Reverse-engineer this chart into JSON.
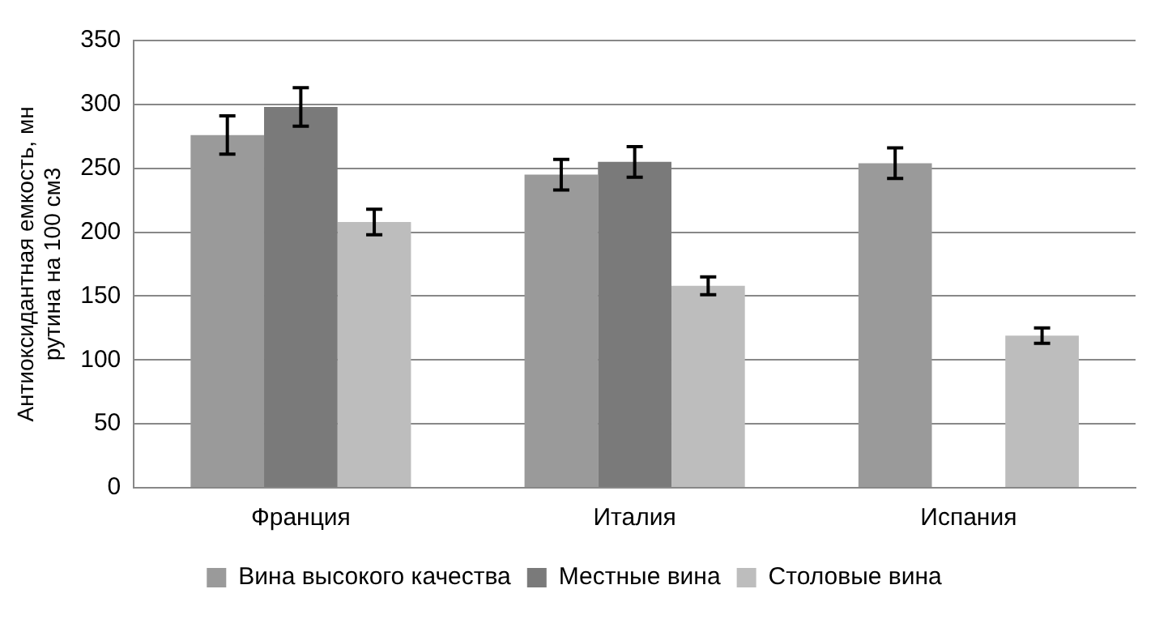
{
  "chart_data": {
    "type": "bar",
    "ylabel": "Антиоксидантная емкость, мн рутина на 100 см3",
    "categories": [
      "Франция",
      "Италия",
      "Испания"
    ],
    "series": [
      {
        "name": "Вина высокого качества",
        "color": "#9a9a9a",
        "values": [
          276,
          245,
          254
        ],
        "errors": [
          15,
          12,
          12
        ]
      },
      {
        "name": "Местные вина",
        "color": "#7a7a7a",
        "values": [
          298,
          255,
          null
        ],
        "errors": [
          15,
          12,
          null
        ]
      },
      {
        "name": "Столовые вина",
        "color": "#bdbdbd",
        "values": [
          208,
          158,
          119
        ],
        "errors": [
          10,
          7,
          6
        ]
      }
    ],
    "ylim": [
      0,
      350
    ],
    "yticks": [
      0,
      50,
      100,
      150,
      200,
      250,
      300,
      350
    ],
    "grid": "y",
    "legend": "bottom"
  }
}
